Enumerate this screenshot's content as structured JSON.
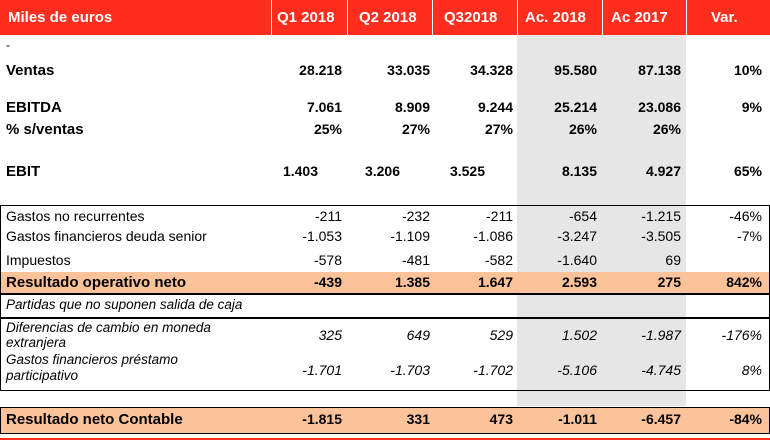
{
  "header": {
    "label": "Miles de euros",
    "columns": [
      "Q1 2018",
      "Q2 2018",
      "Q32018",
      "Ac. 2018",
      "Ac 2017",
      "Var."
    ]
  },
  "mark": "-",
  "rows": {
    "ventas": {
      "label": "Ventas",
      "values": [
        "28.218",
        "33.035",
        "34.328",
        "95.580",
        "87.138",
        "10%"
      ]
    },
    "ebitda": {
      "label": "EBITDA",
      "values": [
        "7.061",
        "8.909",
        "9.244",
        "25.214",
        "23.086",
        "9%"
      ]
    },
    "pct": {
      "label": "% s/ventas",
      "values": [
        "25%",
        "27%",
        "27%",
        "26%",
        "26%",
        ""
      ]
    },
    "ebit": {
      "label": "EBIT",
      "values": [
        "1.403",
        "3.206",
        "3.525",
        "8.135",
        "4.927",
        "65%"
      ]
    },
    "gastos_nr": {
      "label": "Gastos no recurrentes",
      "values": [
        "-211",
        "-232",
        "-211",
        "-654",
        "-1.215",
        "-46%"
      ]
    },
    "gastos_fin": {
      "label": "Gastos financieros deuda senior",
      "values": [
        "-1.053",
        "-1.109",
        "-1.086",
        "-3.247",
        "-3.505",
        "-7%"
      ]
    },
    "impuestos": {
      "label": "Impuestos",
      "values": [
        "-578",
        "-481",
        "-582",
        "-1.640",
        "69",
        ""
      ]
    },
    "res_op": {
      "label": "Resultado operativo neto",
      "values": [
        "-439",
        "1.385",
        "1.647",
        "2.593",
        "275",
        "842%"
      ]
    },
    "partidas": {
      "label": "Partidas que no suponen salida de caja"
    },
    "dif_cambio": {
      "label_line1": "Diferencias de cambio en moneda",
      "label_line2": "extranjera",
      "values": [
        "325",
        "649",
        "529",
        "1.502",
        "-1.987",
        "-176%"
      ]
    },
    "gastos_prest": {
      "label_line1": "Gastos financieros préstamo",
      "label_line2": "participativo",
      "values": [
        "-1.701",
        "-1.703",
        "-1.702",
        "-5.106",
        "-4.745",
        "8%"
      ]
    },
    "res_neto": {
      "label": "Resultado neto Contable",
      "values": [
        "-1.815",
        "331",
        "473",
        "-1.011",
        "-6.457",
        "-84%"
      ]
    }
  },
  "colors": {
    "header_red": "#ff2d1e",
    "highlight_orange": "#fcc39b",
    "shade_gray": "#e6e6e6"
  }
}
